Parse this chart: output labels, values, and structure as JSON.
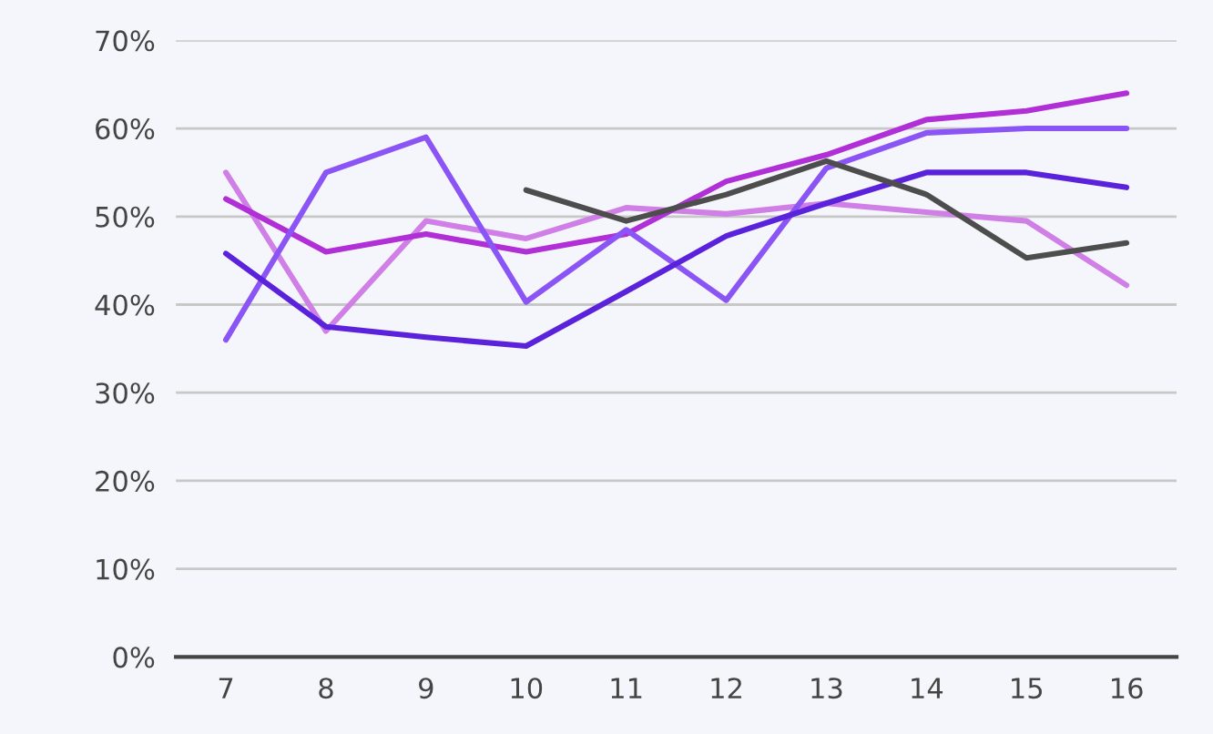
{
  "chart_data": {
    "type": "line",
    "categories": [
      "7",
      "8",
      "9",
      "10",
      "11",
      "12",
      "13",
      "14",
      "15",
      "16"
    ],
    "series": [
      {
        "color": "#cf7fe6",
        "values": [
          55,
          37,
          49.5,
          47.5,
          51,
          50.3,
          51.5,
          50.5,
          49.5,
          42.2
        ]
      },
      {
        "color": "#b02fd6",
        "values": [
          52,
          46,
          48,
          46,
          48,
          54,
          57,
          61,
          62,
          64
        ]
      },
      {
        "color": "#8b55f6",
        "values": [
          36,
          55,
          59,
          40.3,
          48.5,
          40.5,
          55.5,
          59.5,
          60,
          60
        ]
      },
      {
        "color": "#5b22dc",
        "values": [
          45.8,
          37.5,
          36.3,
          35.3,
          41.5,
          47.8,
          51.5,
          55,
          55,
          53.3
        ]
      },
      {
        "color": "#4d4d4d",
        "values": [
          null,
          null,
          null,
          53,
          49.5,
          52.5,
          56.3,
          52.5,
          45.3,
          47
        ]
      }
    ],
    "ylim": [
      0,
      70
    ],
    "yticks": [
      {
        "value": 0,
        "label": "0%"
      },
      {
        "value": 10,
        "label": "10%"
      },
      {
        "value": 20,
        "label": "20%"
      },
      {
        "value": 30,
        "label": "30%"
      },
      {
        "value": 40,
        "label": "40%"
      },
      {
        "value": 50,
        "label": "50%"
      },
      {
        "value": 60,
        "label": "60%"
      },
      {
        "value": 70,
        "label": "70%"
      }
    ],
    "grid": "y",
    "legend": false,
    "marker": "none",
    "line_style": "solid"
  }
}
